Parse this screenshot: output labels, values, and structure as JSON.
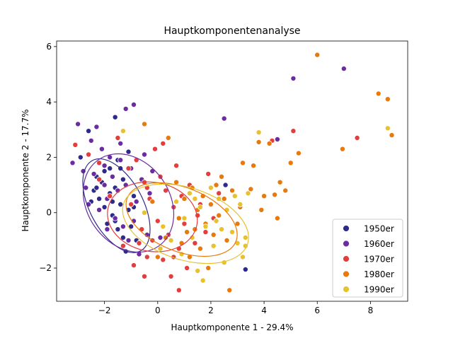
{
  "chart_data": {
    "type": "scatter",
    "title": "Hauptkomponentenanalyse",
    "xlabel": "Hauptkomponente 1 - 29.4%",
    "ylabel": "Hauptkomponente 2 - 17.7%",
    "xlim": [
      -3.8,
      9.4
    ],
    "ylim": [
      -3.2,
      6.2
    ],
    "xticks": [
      -2,
      0,
      2,
      4,
      6,
      8
    ],
    "yticks": [
      -2,
      0,
      2,
      4,
      6
    ],
    "grid": false,
    "legend_position": "lower-right",
    "series": [
      {
        "name": "1950er",
        "color": "#2e2a8c",
        "points": [
          [
            -2.9,
            2.0
          ],
          [
            -2.6,
            2.95
          ],
          [
            -2.5,
            0.4
          ],
          [
            -2.4,
            0.8
          ],
          [
            -2.3,
            1.3
          ],
          [
            -2.2,
            0.5
          ],
          [
            -2.1,
            1.1
          ],
          [
            -2.0,
            0.2
          ],
          [
            -1.9,
            -0.4
          ],
          [
            -1.8,
            1.6
          ],
          [
            -1.8,
            0.7
          ],
          [
            -1.7,
            -0.1
          ],
          [
            -1.6,
            3.45
          ],
          [
            -1.6,
            0.9
          ],
          [
            -1.5,
            -0.6
          ],
          [
            -1.5,
            1.9
          ],
          [
            -1.4,
            0.3
          ],
          [
            -1.3,
            -0.9
          ],
          [
            -1.3,
            1.2
          ],
          [
            -1.2,
            -1.4
          ],
          [
            -1.1,
            0.1
          ],
          [
            -1.0,
            -0.5
          ],
          [
            -0.9,
            0.6
          ],
          [
            -2.0,
            1.5
          ],
          [
            -1.7,
            0.4
          ],
          [
            -1.1,
            2.2
          ],
          [
            -2.3,
            0.9
          ],
          [
            -0.8,
            -1.0
          ],
          [
            -1.6,
            -0.3
          ],
          [
            -1.4,
            1.6
          ],
          [
            3.3,
            -2.05
          ],
          [
            2.55,
            1.0
          ],
          [
            -0.9,
            0.2
          ]
        ]
      },
      {
        "name": "1960er",
        "color": "#6a2ca0",
        "points": [
          [
            -3.2,
            1.8
          ],
          [
            -3.0,
            3.2
          ],
          [
            -2.8,
            1.5
          ],
          [
            -2.7,
            0.9
          ],
          [
            -2.5,
            2.6
          ],
          [
            -2.4,
            1.4
          ],
          [
            -2.3,
            3.1
          ],
          [
            -2.2,
            0.1
          ],
          [
            -2.1,
            2.3
          ],
          [
            -2.0,
            1.0
          ],
          [
            -1.9,
            0.5
          ],
          [
            -1.8,
            2.0
          ],
          [
            -1.7,
            1.3
          ],
          [
            -1.6,
            -0.2
          ],
          [
            -1.5,
            0.8
          ],
          [
            -1.4,
            2.5
          ],
          [
            -1.3,
            -0.5
          ],
          [
            -1.2,
            3.75
          ],
          [
            -1.2,
            1.0
          ],
          [
            -1.1,
            -1.0
          ],
          [
            -1.0,
            1.6
          ],
          [
            -0.9,
            3.9
          ],
          [
            -0.9,
            -0.3
          ],
          [
            -0.8,
            0.4
          ],
          [
            -0.7,
            -1.5
          ],
          [
            -0.6,
            1.2
          ],
          [
            -0.5,
            0.0
          ],
          [
            -0.4,
            -0.8
          ],
          [
            -0.3,
            0.7
          ],
          [
            -0.2,
            1.5
          ],
          [
            -2.6,
            0.3
          ],
          [
            -1.9,
            -0.6
          ],
          [
            -0.5,
            2.1
          ],
          [
            2.5,
            3.4
          ],
          [
            5.1,
            4.85
          ],
          [
            7.0,
            5.2
          ],
          [
            4.5,
            2.65
          ],
          [
            0.1,
            -0.9
          ],
          [
            -1.4,
            1.9
          ],
          [
            -2.0,
            1.7
          ]
        ]
      },
      {
        "name": "1970er",
        "color": "#e23e3e",
        "points": [
          [
            -3.1,
            2.45
          ],
          [
            -2.6,
            2.1
          ],
          [
            -2.2,
            1.8
          ],
          [
            -1.8,
            0.6
          ],
          [
            -1.5,
            2.7
          ],
          [
            -1.3,
            -1.2
          ],
          [
            -1.0,
            0.3
          ],
          [
            -0.9,
            -1.9
          ],
          [
            -0.8,
            1.9
          ],
          [
            -0.6,
            -0.6
          ],
          [
            -0.5,
            1.1
          ],
          [
            -0.4,
            -1.6
          ],
          [
            -0.3,
            0.5
          ],
          [
            -0.2,
            -1.0
          ],
          [
            -0.1,
            2.3
          ],
          [
            0.0,
            -0.3
          ],
          [
            0.1,
            1.3
          ],
          [
            0.2,
            -1.7
          ],
          [
            0.3,
            0.8
          ],
          [
            0.4,
            -0.8
          ],
          [
            0.5,
            -2.3
          ],
          [
            0.6,
            0.2
          ],
          [
            0.7,
            1.7
          ],
          [
            0.8,
            -1.3
          ],
          [
            0.9,
            0.6
          ],
          [
            1.0,
            -0.4
          ],
          [
            1.1,
            -2.0
          ],
          [
            1.2,
            1.0
          ],
          [
            1.4,
            -1.1
          ],
          [
            1.6,
            0.3
          ],
          [
            1.8,
            -0.7
          ],
          [
            1.9,
            1.4
          ],
          [
            2.1,
            -0.2
          ],
          [
            2.3,
            0.7
          ],
          [
            0.2,
            2.5
          ],
          [
            -0.4,
            0.9
          ],
          [
            -0.7,
            -1.1
          ],
          [
            4.3,
            2.6
          ],
          [
            5.1,
            2.95
          ],
          [
            7.5,
            2.7
          ],
          [
            4.5,
            -0.2
          ],
          [
            0.8,
            -2.8
          ],
          [
            -0.5,
            -2.3
          ],
          [
            1.5,
            -0.1
          ],
          [
            -2.2,
            1.2
          ],
          [
            -1.1,
            1.6
          ],
          [
            0.6,
            -1.6
          ]
        ]
      },
      {
        "name": "1980er",
        "color": "#e87a0c",
        "points": [
          [
            -0.5,
            3.2
          ],
          [
            0.4,
            2.7
          ],
          [
            0.7,
            1.1
          ],
          [
            0.8,
            -0.2
          ],
          [
            0.9,
            -1.1
          ],
          [
            1.0,
            0.5
          ],
          [
            1.2,
            -1.6
          ],
          [
            1.3,
            0.9
          ],
          [
            1.4,
            -0.6
          ],
          [
            1.5,
            0.1
          ],
          [
            1.6,
            -1.3
          ],
          [
            1.7,
            0.6
          ],
          [
            1.8,
            -0.4
          ],
          [
            1.9,
            -2.0
          ],
          [
            2.0,
            0.3
          ],
          [
            2.1,
            -0.8
          ],
          [
            2.2,
            1.0
          ],
          [
            2.3,
            -0.1
          ],
          [
            2.5,
            0.5
          ],
          [
            2.6,
            -1.0
          ],
          [
            2.7,
            -2.8
          ],
          [
            2.8,
            0.8
          ],
          [
            3.0,
            -0.4
          ],
          [
            3.1,
            0.2
          ],
          [
            3.2,
            1.8
          ],
          [
            3.6,
            1.7
          ],
          [
            3.8,
            2.55
          ],
          [
            3.9,
            0.1
          ],
          [
            4.0,
            0.6
          ],
          [
            4.2,
            2.5
          ],
          [
            4.5,
            -0.2
          ],
          [
            4.6,
            1.1
          ],
          [
            4.8,
            0.8
          ],
          [
            5.0,
            1.8
          ],
          [
            5.3,
            2.15
          ],
          [
            6.0,
            5.7
          ],
          [
            6.95,
            2.3
          ],
          [
            8.3,
            4.3
          ],
          [
            8.65,
            4.1
          ],
          [
            8.8,
            2.8
          ],
          [
            0.3,
            -0.9
          ],
          [
            0.0,
            -1.6
          ],
          [
            1.1,
            -0.7
          ],
          [
            2.4,
            1.3
          ],
          [
            -0.2,
            0.4
          ],
          [
            4.4,
            0.65
          ],
          [
            3.5,
            0.85
          ]
        ]
      },
      {
        "name": "1990er",
        "color": "#e8c12e",
        "points": [
          [
            -1.3,
            2.95
          ],
          [
            -0.5,
            0.0
          ],
          [
            0.2,
            -0.5
          ],
          [
            0.5,
            -1.0
          ],
          [
            0.7,
            0.4
          ],
          [
            0.9,
            -1.5
          ],
          [
            1.0,
            -0.2
          ],
          [
            1.2,
            0.7
          ],
          [
            1.3,
            -0.9
          ],
          [
            1.5,
            -2.1
          ],
          [
            1.6,
            0.2
          ],
          [
            1.7,
            -2.45
          ],
          [
            1.8,
            -0.5
          ],
          [
            2.0,
            0.9
          ],
          [
            2.1,
            -1.2
          ],
          [
            2.2,
            -0.3
          ],
          [
            2.3,
            0.5
          ],
          [
            2.5,
            -1.8
          ],
          [
            2.6,
            0.1
          ],
          [
            2.8,
            -0.7
          ],
          [
            2.9,
            0.6
          ],
          [
            3.0,
            -1.1
          ],
          [
            3.1,
            0.3
          ],
          [
            3.2,
            -1.6
          ],
          [
            3.3,
            -0.9
          ],
          [
            3.4,
            0.7
          ],
          [
            3.8,
            2.9
          ],
          [
            3.3,
            -1.2
          ],
          [
            8.65,
            3.05
          ],
          [
            0.1,
            -1.3
          ],
          [
            1.4,
            0.5
          ],
          [
            2.4,
            -0.6
          ]
        ]
      }
    ],
    "ellipses": [
      {
        "series": "1950er",
        "cx": -1.55,
        "cy": 0.25,
        "rx": 1.0,
        "ry": 1.85,
        "angle_deg": -28
      },
      {
        "series": "1960er",
        "cx": -1.1,
        "cy": 0.35,
        "rx": 1.55,
        "ry": 1.9,
        "angle_deg": -35
      },
      {
        "series": "1970er",
        "cx": -0.2,
        "cy": -0.15,
        "rx": 1.7,
        "ry": 1.25,
        "angle_deg": 10
      },
      {
        "series": "1980er",
        "cx": 0.9,
        "cy": -0.25,
        "rx": 2.2,
        "ry": 1.15,
        "angle_deg": 22
      },
      {
        "series": "1990er",
        "cx": 1.05,
        "cy": -0.4,
        "rx": 2.45,
        "ry": 1.3,
        "angle_deg": 18
      }
    ]
  }
}
